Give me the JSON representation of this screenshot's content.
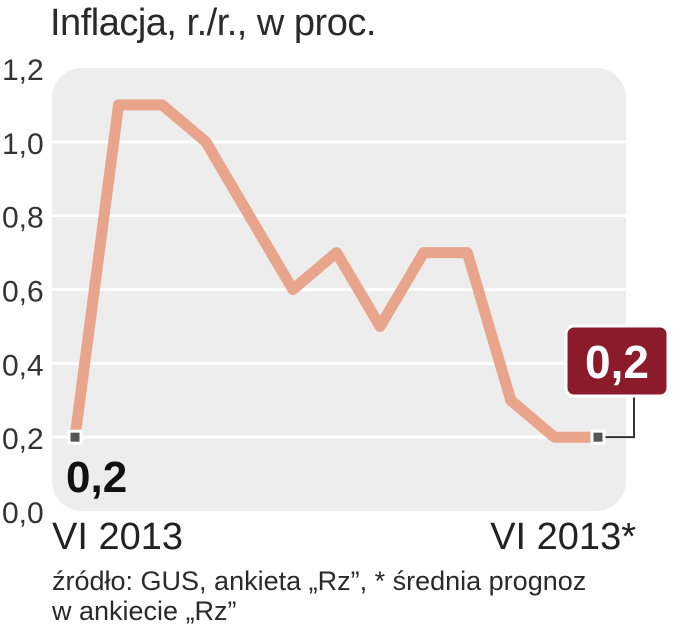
{
  "chart_data": {
    "type": "line",
    "title": "Inflacja, r./r., w proc.",
    "ylim": [
      0,
      1.2
    ],
    "yticks": [
      "0,0",
      "0,2",
      "0,4",
      "0,6",
      "0,8",
      "1,0",
      "1,2"
    ],
    "yticks_values": [
      0,
      0.2,
      0.4,
      0.6,
      0.8,
      1.0,
      1.2
    ],
    "x_labels": [
      "VI 2013",
      "VI 2013*"
    ],
    "values": [
      0.2,
      1.1,
      1.1,
      1.0,
      0.8,
      0.6,
      0.7,
      0.5,
      0.7,
      0.7,
      0.3,
      0.2,
      0.2
    ],
    "start_label": "0,2",
    "end_label": "0,2",
    "grid": true,
    "colors": {
      "line": "#e8a58c",
      "panel": "#ededed",
      "grid": "#ffffff",
      "badge": "#8b1a2b",
      "marker": "#555555"
    }
  },
  "source": {
    "line1": "źródło: GUS, ankieta „Rz”, * średnia prognoz",
    "line2": "w ankiecie „Rz”"
  }
}
